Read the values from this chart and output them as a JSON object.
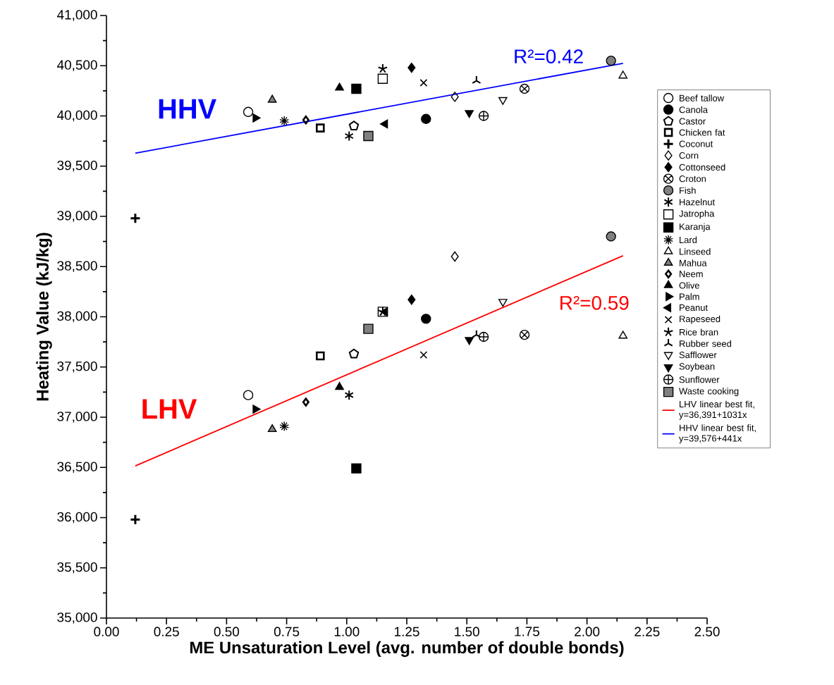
{
  "chart_data": {
    "type": "scatter",
    "xlabel": "ME Unsaturation Level (avg. number of double bonds)",
    "ylabel": "Heating Value (kJ/kg)",
    "xlim": [
      0,
      2.5
    ],
    "ylim": [
      35000,
      41000
    ],
    "xticks": [
      {
        "value": 0,
        "label": "0.00"
      },
      {
        "value": 0.125,
        "label": null
      },
      {
        "value": 0.25,
        "label": "0.25"
      },
      {
        "value": 0.375,
        "label": null
      },
      {
        "value": 0.5,
        "label": "0.50"
      },
      {
        "value": 0.625,
        "label": null
      },
      {
        "value": 0.75,
        "label": "0.75"
      },
      {
        "value": 0.875,
        "label": null
      },
      {
        "value": 1,
        "label": "1.00"
      },
      {
        "value": 1.125,
        "label": null
      },
      {
        "value": 1.25,
        "label": "1.25"
      },
      {
        "value": 1.375,
        "label": null
      },
      {
        "value": 1.5,
        "label": "1.50"
      },
      {
        "value": 1.625,
        "label": null
      },
      {
        "value": 1.75,
        "label": "1.75"
      },
      {
        "value": 1.875,
        "label": null
      },
      {
        "value": 2,
        "label": "2.00"
      },
      {
        "value": 2.125,
        "label": null
      },
      {
        "value": 2.25,
        "label": "2.25"
      },
      {
        "value": 2.375,
        "label": null
      },
      {
        "value": 2.5,
        "label": "2.50"
      }
    ],
    "yticks": [
      {
        "value": 35000,
        "label": "35,000"
      },
      {
        "value": 35250,
        "label": null
      },
      {
        "value": 35500,
        "label": "35,500"
      },
      {
        "value": 35750,
        "label": null
      },
      {
        "value": 36000,
        "label": "36,000"
      },
      {
        "value": 36250,
        "label": null
      },
      {
        "value": 36500,
        "label": "36,500"
      },
      {
        "value": 36750,
        "label": null
      },
      {
        "value": 37000,
        "label": "37,000"
      },
      {
        "value": 37250,
        "label": null
      },
      {
        "value": 37500,
        "label": "37,500"
      },
      {
        "value": 37750,
        "label": null
      },
      {
        "value": 38000,
        "label": "38,000"
      },
      {
        "value": 38250,
        "label": null
      },
      {
        "value": 38500,
        "label": "38,500"
      },
      {
        "value": 38750,
        "label": null
      },
      {
        "value": 39000,
        "label": "39,000"
      },
      {
        "value": 39250,
        "label": null
      },
      {
        "value": 39500,
        "label": "39,500"
      },
      {
        "value": 39750,
        "label": null
      },
      {
        "value": 40000,
        "label": "40,000"
      },
      {
        "value": 40250,
        "label": null
      },
      {
        "value": 40500,
        "label": "40,500"
      },
      {
        "value": 40750,
        "label": null
      },
      {
        "value": 41000,
        "label": "41,000"
      }
    ],
    "legend": "right",
    "annotations": [
      "HHV",
      "LHV",
      "R²=0.42",
      "R²=0.59"
    ],
    "series": [
      {
        "name": "Beef tallow",
        "color": "#000000",
        "x": [
          0.59,
          0.59
        ],
        "values": [
          37220,
          40040
        ]
      },
      {
        "name": "Canola",
        "color": "#000000",
        "x": [
          1.33,
          1.33
        ],
        "values": [
          37980,
          39970
        ]
      },
      {
        "name": "Castor",
        "color": "#000000",
        "x": [
          1.03,
          1.03
        ],
        "values": [
          37630,
          39900
        ]
      },
      {
        "name": "Chicken fat",
        "color": "#000000",
        "x": [
          0.89,
          0.89
        ],
        "values": [
          37610,
          39880
        ]
      },
      {
        "name": "Coconut",
        "color": "#000000",
        "x": [
          0.12,
          0.12
        ],
        "values": [
          35980,
          38980
        ]
      },
      {
        "name": "Corn",
        "color": "#000000",
        "x": [
          1.45,
          1.45
        ],
        "values": [
          38600,
          40190
        ]
      },
      {
        "name": "Cottonseed",
        "color": "#000000",
        "x": [
          1.27,
          1.27
        ],
        "values": [
          38170,
          40480
        ]
      },
      {
        "name": "Croton",
        "color": "#000000",
        "x": [
          1.74,
          1.74
        ],
        "values": [
          37820,
          40270
        ]
      },
      {
        "name": "Fish",
        "color": "#000000",
        "x": [
          2.1,
          2.1
        ],
        "values": [
          38800,
          40550
        ]
      },
      {
        "name": "Hazelnut",
        "color": "#000000",
        "x": [
          1.01,
          1.01
        ],
        "values": [
          37220,
          39800
        ]
      },
      {
        "name": "Jatropha",
        "color": "#000000",
        "x": [
          1.15,
          1.15
        ],
        "values": [
          38050,
          40370
        ]
      },
      {
        "name": "Karanja",
        "color": "#000000",
        "x": [
          1.04,
          1.04
        ],
        "values": [
          36490,
          40270
        ]
      },
      {
        "name": "Lard",
        "color": "#000000",
        "x": [
          0.74,
          0.74
        ],
        "values": [
          36910,
          39950
        ]
      },
      {
        "name": "Linseed",
        "color": "#000000",
        "x": [
          2.15,
          2.15
        ],
        "values": [
          37810,
          40400
        ]
      },
      {
        "name": "Mahua",
        "color": "#000000",
        "x": [
          0.69,
          0.69
        ],
        "values": [
          36880,
          40160
        ]
      },
      {
        "name": "Neem",
        "color": "#000000",
        "x": [
          0.83,
          0.83
        ],
        "values": [
          37150,
          39960
        ]
      },
      {
        "name": "Olive",
        "color": "#000000",
        "x": [
          0.97,
          0.97
        ],
        "values": [
          37300,
          40280
        ]
      },
      {
        "name": "Palm",
        "color": "#000000",
        "x": [
          0.62,
          0.62
        ],
        "values": [
          37080,
          39980
        ]
      },
      {
        "name": "Peanut",
        "color": "#000000",
        "x": [
          1.16,
          1.16
        ],
        "values": [
          38050,
          39920
        ]
      },
      {
        "name": "Rapeseed",
        "color": "#000000",
        "x": [
          1.32,
          1.32
        ],
        "values": [
          37620,
          40330
        ]
      },
      {
        "name": "Rice bran",
        "color": "#000000",
        "x": [
          1.15,
          1.15
        ],
        "values": [
          38050,
          40470
        ]
      },
      {
        "name": "Rubber seed",
        "color": "#000000",
        "x": [
          1.54,
          1.54
        ],
        "values": [
          37820,
          40350
        ]
      },
      {
        "name": "Safflower",
        "color": "#000000",
        "x": [
          1.65,
          1.65
        ],
        "values": [
          38150,
          40160
        ]
      },
      {
        "name": "Soybean",
        "color": "#000000",
        "x": [
          1.51,
          1.51
        ],
        "values": [
          37770,
          40030
        ]
      },
      {
        "name": "Sunflower",
        "color": "#000000",
        "x": [
          1.57,
          1.57
        ],
        "values": [
          37800,
          40000
        ]
      },
      {
        "name": "Waste cooking",
        "color": "#000000",
        "x": [
          1.09,
          1.09
        ],
        "values": [
          37880,
          39800
        ]
      },
      {
        "name": "LHV linear best fit, y=36,391+1031x",
        "type": "line",
        "color": "#ff0000",
        "x": [
          0.12,
          2.15
        ],
        "values": [
          36515,
          38608
        ]
      },
      {
        "name": "HHV linear best fit, y=39,576+441x",
        "type": "line",
        "color": "#0000ff",
        "x": [
          0.12,
          2.15
        ],
        "values": [
          39629,
          40524
        ]
      }
    ]
  }
}
